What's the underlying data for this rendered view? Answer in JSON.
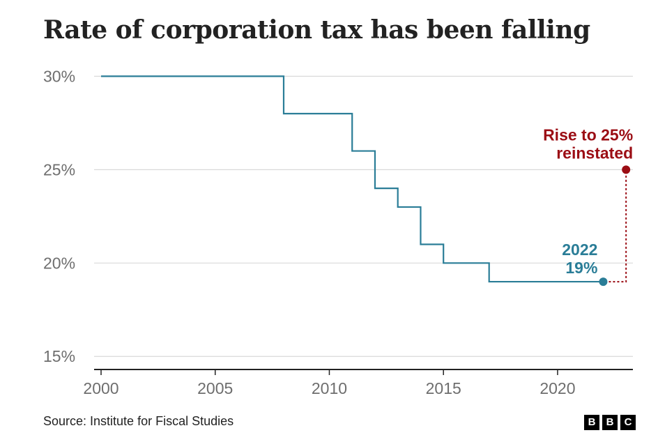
{
  "chart_data": {
    "type": "line",
    "title": "Rate of corporation tax has been falling",
    "xlim": [
      2000,
      2023.3
    ],
    "ylim": [
      14.3,
      30.5
    ],
    "x_ticks": [
      2000,
      2005,
      2010,
      2015,
      2020
    ],
    "y_ticks": [
      {
        "value": 30,
        "label": "30%"
      },
      {
        "value": 25,
        "label": "25%"
      },
      {
        "value": 20,
        "label": "20%"
      },
      {
        "value": 15,
        "label": "15%"
      }
    ],
    "grid": true,
    "series": [
      {
        "step": true,
        "color": "#2a7d97",
        "x": [
          2000,
          2008,
          2011,
          2012,
          2013,
          2014,
          2015,
          2017,
          2022
        ],
        "y": [
          30,
          28,
          26,
          24,
          23,
          21,
          20,
          19,
          19
        ]
      }
    ],
    "annotations": [
      {
        "x": 2022,
        "y": 19,
        "lines": [
          "2022",
          "19%"
        ],
        "color": "#2a7d97"
      },
      {
        "x": 2023,
        "y": 25,
        "lines": [
          "Rise to 25%",
          "reinstated"
        ],
        "color": "#9b0d14",
        "from_y": 19
      }
    ]
  },
  "source": "Source: Institute for Fiscal Studies",
  "logo": [
    "B",
    "B",
    "C"
  ]
}
